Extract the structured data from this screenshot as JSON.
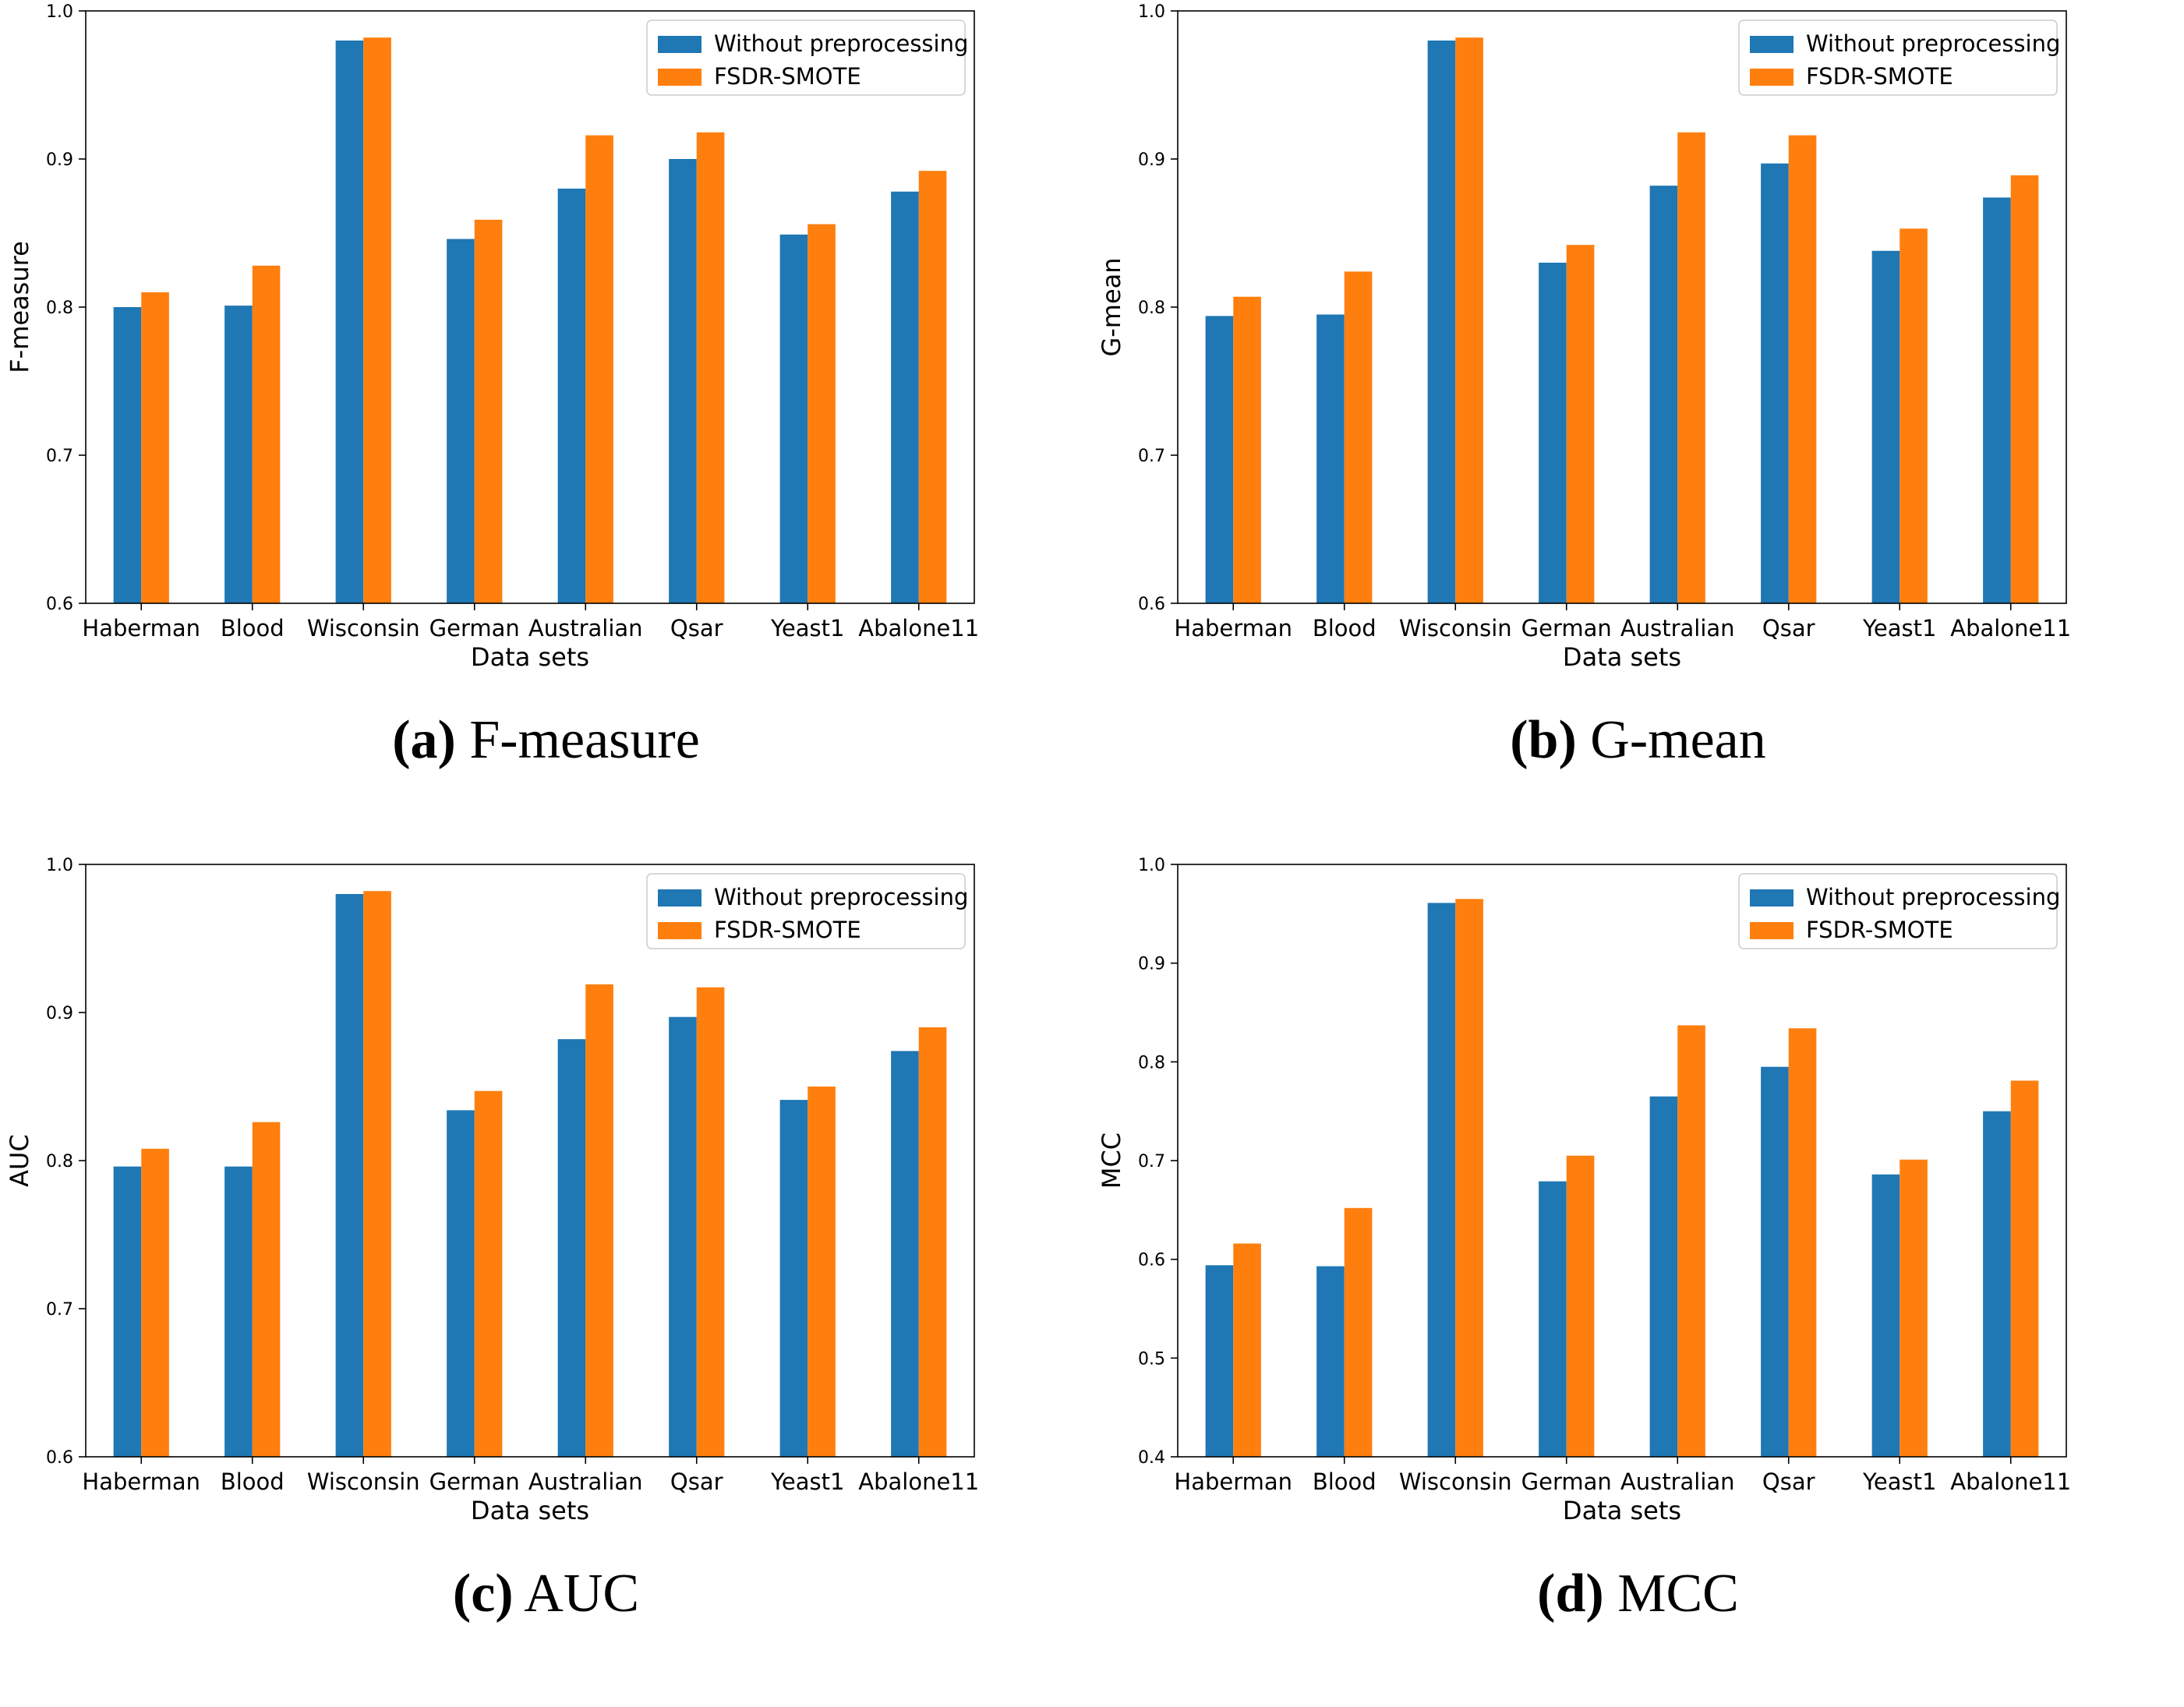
{
  "colors": {
    "series1": "#1f77b4",
    "series2": "#ff7f0e"
  },
  "chart_data": [
    {
      "type": "bar",
      "categories": [
        "Haberman",
        "Blood",
        "Wisconsin",
        "German",
        "Australian",
        "Qsar",
        "Yeast1",
        "Abalone11"
      ],
      "series": [
        {
          "name": "Without preprocessing",
          "values": [
            0.8,
            0.801,
            0.98,
            0.846,
            0.88,
            0.9,
            0.849,
            0.878
          ]
        },
        {
          "name": "FSDR-SMOTE",
          "values": [
            0.81,
            0.828,
            0.982,
            0.859,
            0.916,
            0.918,
            0.856,
            0.892
          ]
        }
      ],
      "xlabel": "Data sets",
      "ylabel": "F-measure",
      "ylim": [
        0.6,
        1.0
      ],
      "yticks": [
        "0.6",
        "0.7",
        "0.8",
        "0.9",
        "1.0"
      ],
      "legend": "top-right",
      "caption": {
        "letter": "(a)",
        "text": " F-measure"
      }
    },
    {
      "type": "bar",
      "categories": [
        "Haberman",
        "Blood",
        "Wisconsin",
        "German",
        "Australian",
        "Qsar",
        "Yeast1",
        "Abalone11"
      ],
      "series": [
        {
          "name": "Without preprocessing",
          "values": [
            0.794,
            0.795,
            0.98,
            0.83,
            0.882,
            0.897,
            0.838,
            0.874
          ]
        },
        {
          "name": "FSDR-SMOTE",
          "values": [
            0.807,
            0.824,
            0.982,
            0.842,
            0.918,
            0.916,
            0.853,
            0.889
          ]
        }
      ],
      "xlabel": "Data sets",
      "ylabel": "G-mean",
      "ylim": [
        0.6,
        1.0
      ],
      "yticks": [
        "0.6",
        "0.7",
        "0.8",
        "0.9",
        "1.0"
      ],
      "legend": "top-right",
      "caption": {
        "letter": "(b)",
        "text": " G-mean"
      }
    },
    {
      "type": "bar",
      "categories": [
        "Haberman",
        "Blood",
        "Wisconsin",
        "German",
        "Australian",
        "Qsar",
        "Yeast1",
        "Abalone11"
      ],
      "series": [
        {
          "name": "Without preprocessing",
          "values": [
            0.796,
            0.796,
            0.98,
            0.834,
            0.882,
            0.897,
            0.841,
            0.874
          ]
        },
        {
          "name": "FSDR-SMOTE",
          "values": [
            0.808,
            0.826,
            0.982,
            0.847,
            0.919,
            0.917,
            0.85,
            0.89
          ]
        }
      ],
      "xlabel": "Data sets",
      "ylabel": "AUC",
      "ylim": [
        0.6,
        1.0
      ],
      "yticks": [
        "0.6",
        "0.7",
        "0.8",
        "0.9",
        "1.0"
      ],
      "legend": "top-right",
      "caption": {
        "letter": "(c)",
        "text": " AUC"
      }
    },
    {
      "type": "bar",
      "categories": [
        "Haberman",
        "Blood",
        "Wisconsin",
        "German",
        "Australian",
        "Qsar",
        "Yeast1",
        "Abalone11"
      ],
      "series": [
        {
          "name": "Without preprocessing",
          "values": [
            0.594,
            0.593,
            0.961,
            0.679,
            0.765,
            0.795,
            0.686,
            0.75
          ]
        },
        {
          "name": "FSDR-SMOTE",
          "values": [
            0.616,
            0.652,
            0.965,
            0.705,
            0.837,
            0.834,
            0.701,
            0.781
          ]
        }
      ],
      "xlabel": "Data sets",
      "ylabel": "MCC",
      "ylim": [
        0.4,
        1.0
      ],
      "yticks": [
        "0.4",
        "0.5",
        "0.6",
        "0.7",
        "0.8",
        "0.9",
        "1.0"
      ],
      "legend": "top-right",
      "caption": {
        "letter": "(d)",
        "text": " MCC"
      }
    }
  ]
}
